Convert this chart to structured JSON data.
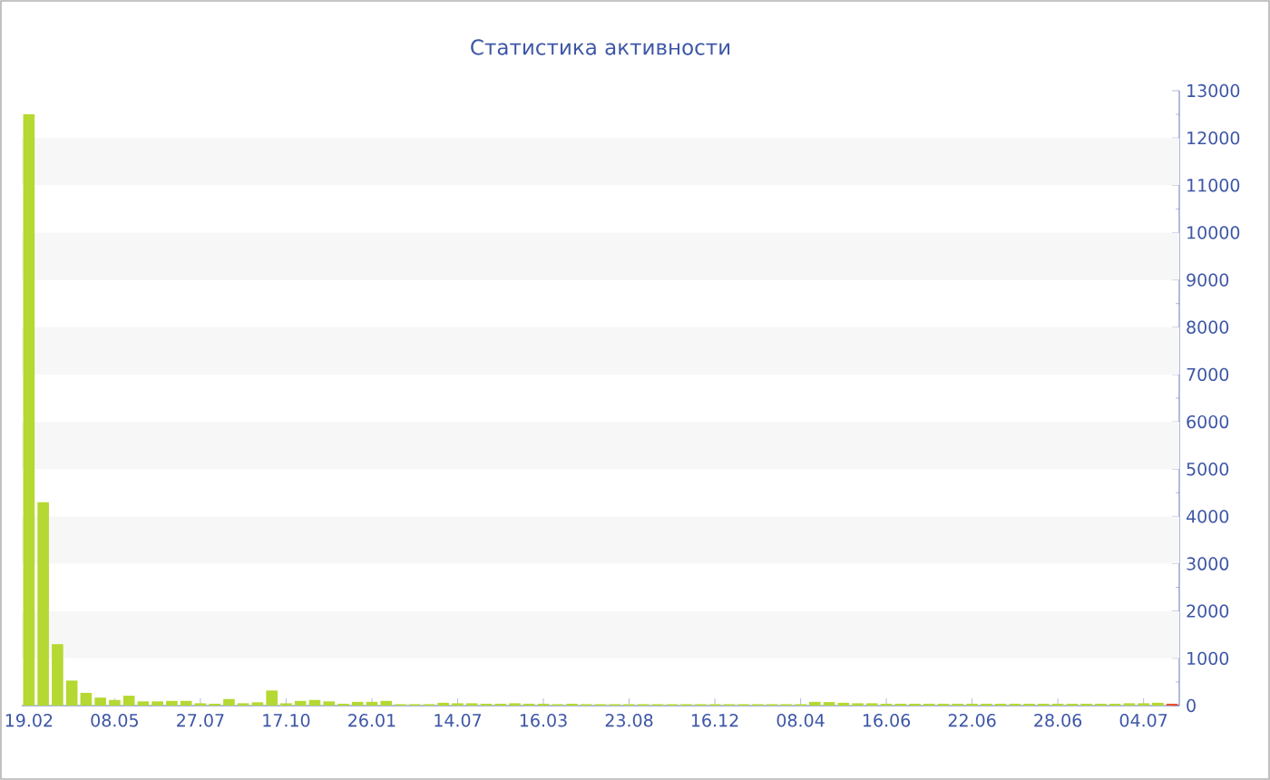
{
  "chart_data": {
    "type": "bar",
    "title": "Статистика активности",
    "categories": [
      "19.02",
      null,
      null,
      null,
      null,
      null,
      "08.05",
      null,
      null,
      null,
      null,
      null,
      "27.07",
      null,
      null,
      null,
      null,
      null,
      "17.10",
      null,
      null,
      null,
      null,
      null,
      "26.01",
      null,
      null,
      null,
      null,
      null,
      "14.07",
      null,
      null,
      null,
      null,
      null,
      "16.03",
      null,
      null,
      null,
      null,
      null,
      "23.08",
      null,
      null,
      null,
      null,
      null,
      "16.12",
      null,
      null,
      null,
      null,
      null,
      "08.04",
      null,
      null,
      null,
      null,
      null,
      "16.06",
      null,
      null,
      null,
      null,
      null,
      "22.06",
      null,
      null,
      null,
      null,
      null,
      "28.06",
      null,
      null,
      null,
      null,
      null,
      "04.07",
      null,
      null
    ],
    "values": [
      12500,
      4300,
      1300,
      530,
      270,
      170,
      120,
      210,
      90,
      90,
      100,
      100,
      50,
      40,
      140,
      50,
      70,
      320,
      50,
      100,
      120,
      90,
      40,
      80,
      80,
      100,
      30,
      30,
      30,
      60,
      50,
      50,
      40,
      40,
      50,
      40,
      40,
      30,
      40,
      30,
      30,
      30,
      30,
      30,
      30,
      30,
      30,
      30,
      30,
      30,
      30,
      30,
      30,
      30,
      30,
      80,
      75,
      60,
      50,
      50,
      40,
      40,
      40,
      40,
      40,
      40,
      40,
      40,
      40,
      40,
      40,
      40,
      40,
      40,
      40,
      40,
      40,
      50,
      50,
      60,
      40
    ],
    "colors": [
      "#b5d832",
      "#b5d832",
      "#b5d832",
      "#b5d832",
      "#b5d832",
      "#b5d832",
      "#b5d832",
      "#b5d832",
      "#b5d832",
      "#b5d832",
      "#b5d832",
      "#b5d832",
      "#b5d832",
      "#b5d832",
      "#b5d832",
      "#b5d832",
      "#b5d832",
      "#b5d832",
      "#b5d832",
      "#b5d832",
      "#b5d832",
      "#b5d832",
      "#b5d832",
      "#b5d832",
      "#b5d832",
      "#b5d832",
      "#b5d832",
      "#b5d832",
      "#b5d832",
      "#b5d832",
      "#b5d832",
      "#b5d832",
      "#b5d832",
      "#b5d832",
      "#b5d832",
      "#b5d832",
      "#b5d832",
      "#b5d832",
      "#b5d832",
      "#b5d832",
      "#b5d832",
      "#b5d832",
      "#b5d832",
      "#b5d832",
      "#b5d832",
      "#b5d832",
      "#b5d832",
      "#b5d832",
      "#b5d832",
      "#b5d832",
      "#b5d832",
      "#b5d832",
      "#b5d832",
      "#b5d832",
      "#b5d832",
      "#b5d832",
      "#b5d832",
      "#b5d832",
      "#b5d832",
      "#b5d832",
      "#b5d832",
      "#b5d832",
      "#b5d832",
      "#b5d832",
      "#b5d832",
      "#b5d832",
      "#b5d832",
      "#b5d832",
      "#b5d832",
      "#b5d832",
      "#b5d832",
      "#b5d832",
      "#b5d832",
      "#b5d832",
      "#b5d832",
      "#b5d832",
      "#b5d832",
      "#b5d832",
      "#b5d832",
      "#b5d832",
      "#e8502a"
    ],
    "ylim": [
      0,
      13000
    ],
    "yticks": [
      0,
      1000,
      2000,
      3000,
      4000,
      5000,
      6000,
      7000,
      8000,
      9000,
      10000,
      11000,
      12000,
      13000
    ],
    "bands": [
      {
        "axis": "y",
        "from": 1000,
        "to": 2000,
        "color": "#f7f7f7"
      },
      {
        "axis": "y",
        "from": 3000,
        "to": 4000,
        "color": "#f7f7f7"
      },
      {
        "axis": "y",
        "from": 5000,
        "to": 6000,
        "color": "#f7f7f7"
      },
      {
        "axis": "y",
        "from": 7000,
        "to": 8000,
        "color": "#f7f7f7"
      },
      {
        "axis": "y",
        "from": 9000,
        "to": 10000,
        "color": "#f7f7f7"
      },
      {
        "axis": "y",
        "from": 11000,
        "to": 12000,
        "color": "#f7f7f7"
      }
    ]
  }
}
